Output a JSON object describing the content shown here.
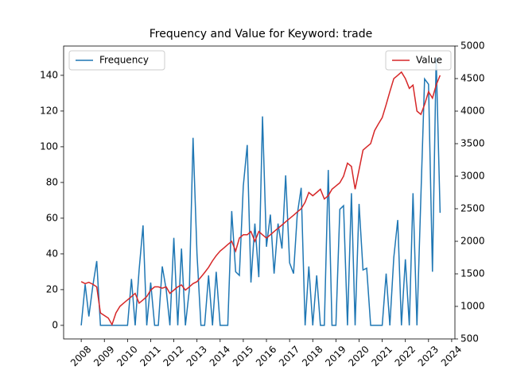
{
  "chart_data": {
    "type": "line",
    "title": "Frequency and Value for Keyword: trade",
    "x": [
      2008,
      2008.17,
      2008.33,
      2008.5,
      2008.67,
      2008.83,
      2009,
      2009.17,
      2009.33,
      2009.5,
      2009.67,
      2009.83,
      2010,
      2010.17,
      2010.33,
      2010.5,
      2010.67,
      2010.83,
      2011,
      2011.17,
      2011.33,
      2011.5,
      2011.67,
      2011.83,
      2012,
      2012.17,
      2012.33,
      2012.5,
      2012.67,
      2012.83,
      2013,
      2013.17,
      2013.33,
      2013.5,
      2013.67,
      2013.83,
      2014,
      2014.17,
      2014.33,
      2014.5,
      2014.67,
      2014.83,
      2015,
      2015.17,
      2015.33,
      2015.5,
      2015.67,
      2015.83,
      2016,
      2016.17,
      2016.33,
      2016.5,
      2016.67,
      2016.83,
      2017,
      2017.17,
      2017.33,
      2017.5,
      2017.67,
      2017.83,
      2018,
      2018.17,
      2018.33,
      2018.5,
      2018.67,
      2018.83,
      2019,
      2019.17,
      2019.33,
      2019.5,
      2019.67,
      2019.83,
      2020,
      2020.17,
      2020.33,
      2020.5,
      2020.67,
      2020.83,
      2021,
      2021.17,
      2021.33,
      2021.5,
      2021.67,
      2021.83,
      2022,
      2022.17,
      2022.33,
      2022.5,
      2022.67,
      2022.83,
      2023,
      2023.17,
      2023.33,
      2023.5
    ],
    "series": [
      {
        "name": "Frequency",
        "color": "#1f77b4",
        "axis": "y",
        "values": [
          0,
          23,
          5,
          22,
          36,
          0,
          0,
          0,
          0,
          0,
          0,
          0,
          0,
          26,
          0,
          31,
          56,
          0,
          24,
          0,
          0,
          33,
          20,
          0,
          49,
          0,
          43,
          0,
          20,
          105,
          40,
          0,
          0,
          28,
          0,
          30,
          0,
          0,
          0,
          64,
          30,
          28,
          78,
          101,
          24,
          57,
          27,
          117,
          44,
          62,
          29,
          57,
          43,
          84,
          35,
          29,
          62,
          77,
          0,
          33,
          0,
          28,
          0,
          0,
          87,
          0,
          0,
          65,
          67,
          0,
          74,
          0,
          68,
          31,
          32,
          0,
          0,
          0,
          0,
          29,
          0,
          38,
          59,
          0,
          37,
          0,
          74,
          0,
          72,
          138,
          135,
          30,
          150,
          63
        ]
      },
      {
        "name": "Value",
        "color": "#d62728",
        "axis": "y2",
        "values": [
          1380,
          1350,
          1370,
          1340,
          1300,
          900,
          860,
          820,
          720,
          900,
          1000,
          1050,
          1100,
          1150,
          1200,
          1050,
          1100,
          1150,
          1250,
          1300,
          1300,
          1280,
          1300,
          1200,
          1250,
          1300,
          1330,
          1250,
          1300,
          1350,
          1380,
          1450,
          1520,
          1600,
          1700,
          1780,
          1850,
          1900,
          1950,
          2000,
          1850,
          2050,
          2100,
          2100,
          2150,
          2000,
          2150,
          2100,
          2050,
          2100,
          2150,
          2200,
          2250,
          2300,
          2350,
          2400,
          2450,
          2500,
          2600,
          2750,
          2700,
          2750,
          2800,
          2650,
          2700,
          2800,
          2850,
          2900,
          3000,
          3200,
          3150,
          2800,
          3100,
          3400,
          3450,
          3500,
          3700,
          3800,
          3900,
          4100,
          4300,
          4500,
          4550,
          4600,
          4500,
          4350,
          4400,
          4000,
          3950,
          4100,
          4300,
          4200,
          4400,
          4550
        ]
      }
    ],
    "xlim": [
      2007.24,
      2024.14
    ],
    "xticks": [
      2008,
      2009,
      2010,
      2011,
      2012,
      2013,
      2014,
      2015,
      2016,
      2017,
      2018,
      2019,
      2020,
      2021,
      2022,
      2023,
      2024
    ],
    "ylim": [
      -7.6,
      156.4
    ],
    "yticks": [
      0,
      20,
      40,
      60,
      80,
      100,
      120,
      140
    ],
    "y2lim": [
      500,
      5000
    ],
    "y2ticks": [
      500,
      1000,
      1500,
      2000,
      2500,
      3000,
      3500,
      4000,
      4500,
      5000
    ],
    "grid": false
  }
}
